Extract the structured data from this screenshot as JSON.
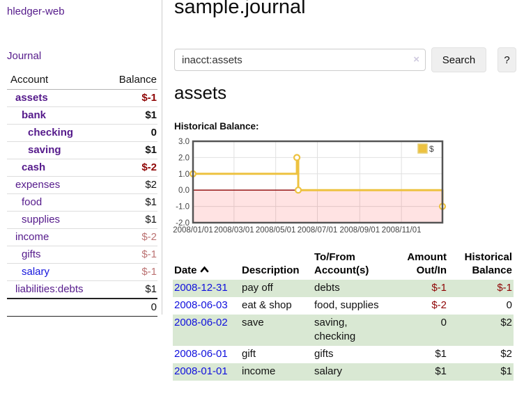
{
  "app": {
    "title": "hledger-web"
  },
  "sidebar": {
    "journal_link": "Journal",
    "account_header": "Account",
    "balance_header": "Balance",
    "accounts": [
      {
        "name": "assets",
        "indent": 0,
        "bold": true,
        "color": "purple",
        "balance": "$-1",
        "balance_class": "neg-strong"
      },
      {
        "name": "bank",
        "indent": 1,
        "bold": true,
        "color": "purple",
        "balance": "$1",
        "balance_class": ""
      },
      {
        "name": "checking",
        "indent": 2,
        "bold": true,
        "color": "purple",
        "balance": "0",
        "balance_class": ""
      },
      {
        "name": "saving",
        "indent": 2,
        "bold": true,
        "color": "purple",
        "balance": "$1",
        "balance_class": ""
      },
      {
        "name": "cash",
        "indent": 1,
        "bold": true,
        "color": "purple",
        "balance": "$-2",
        "balance_class": "neg-strong"
      },
      {
        "name": "expenses",
        "indent": 0,
        "bold": false,
        "color": "purple",
        "balance": "$2",
        "balance_class": ""
      },
      {
        "name": "food",
        "indent": 1,
        "bold": false,
        "color": "purple",
        "balance": "$1",
        "balance_class": ""
      },
      {
        "name": "supplies",
        "indent": 1,
        "bold": false,
        "color": "purple",
        "balance": "$1",
        "balance_class": ""
      },
      {
        "name": "income",
        "indent": 0,
        "bold": false,
        "color": "purple",
        "balance": "$-2",
        "balance_class": "neg-soft"
      },
      {
        "name": "gifts",
        "indent": 1,
        "bold": false,
        "color": "purple",
        "balance": "$-1",
        "balance_class": "neg-soft"
      },
      {
        "name": "salary",
        "indent": 1,
        "bold": false,
        "color": "blue",
        "balance": "$-1",
        "balance_class": "neg-soft"
      },
      {
        "name": "liabilities:debts",
        "indent": 0,
        "bold": false,
        "color": "purple",
        "balance": "$1",
        "balance_class": ""
      }
    ],
    "total": "0"
  },
  "main": {
    "title": "sample.journal",
    "search": {
      "value": "inacct:assets",
      "clear_icon": "×",
      "search_label": "Search",
      "help_label": "?"
    },
    "account_heading": "assets",
    "chart_label": "Historical Balance:"
  },
  "chart_data": {
    "type": "line",
    "step": true,
    "title": "Historical Balance:",
    "series": [
      {
        "name": "$",
        "color": "#edc240",
        "points": [
          [
            "2008/01/01",
            1
          ],
          [
            "2008/06/01",
            2
          ],
          [
            "2008/06/03",
            0
          ],
          [
            "2008/12/31",
            -1
          ]
        ]
      }
    ],
    "xmin": "2008/01/01",
    "xmax": "2008/12/31",
    "x_ticks": [
      "2008/01/01",
      "2008/03/01",
      "2008/05/01",
      "2008/07/01",
      "2008/09/01",
      "2008/11/01"
    ],
    "y_ticks": [
      {
        "v": 3,
        "label": "3.0"
      },
      {
        "v": 2,
        "label": "2.0"
      },
      {
        "v": 1,
        "label": "1.0"
      },
      {
        "v": 0,
        "label": "0.0"
      },
      {
        "v": -1,
        "label": "-1.0"
      },
      {
        "v": -2,
        "label": "-2.0"
      }
    ],
    "ylim": [
      -2,
      3
    ],
    "legend_label": "$",
    "legend_position": "top-right",
    "grid": true,
    "colors": {
      "line": "#edc240",
      "marker_fill": "#ffffff",
      "negative_region": "rgba(255,0,0,0.11)",
      "zero_line": "#8b0000",
      "gridline": "#e0e0e0",
      "border": "#545454",
      "tick_text": "#444444"
    }
  },
  "register": {
    "headers": {
      "date": "Date",
      "description": "Description",
      "tofrom_line1": "To/From",
      "tofrom_line2": "Account(s)",
      "amount_line1": "Amount",
      "amount_line2": "Out/In",
      "balance_line1": "Historical",
      "balance_line2": "Balance"
    },
    "rows": [
      {
        "date": "2008-12-31",
        "description": "pay off",
        "accounts": [
          "debts"
        ],
        "amount": "$-1",
        "amount_negative": true,
        "balance": "$-1",
        "balance_negative": true,
        "shaded": true
      },
      {
        "date": "2008-06-03",
        "description": "eat & shop",
        "accounts": [
          "food, supplies"
        ],
        "amount": "$-2",
        "amount_negative": true,
        "balance": "0",
        "balance_negative": false,
        "shaded": false
      },
      {
        "date": "2008-06-02",
        "description": "save",
        "accounts": [
          "saving,",
          "checking"
        ],
        "amount": "0",
        "amount_negative": false,
        "balance": "$2",
        "balance_negative": false,
        "shaded": true
      },
      {
        "date": "2008-06-01",
        "description": "gift",
        "accounts": [
          "gifts"
        ],
        "amount": "$1",
        "amount_negative": false,
        "balance": "$2",
        "balance_negative": false,
        "shaded": false
      },
      {
        "date": "2008-01-01",
        "description": "income",
        "accounts": [
          "salary"
        ],
        "amount": "$1",
        "amount_negative": false,
        "balance": "$1",
        "balance_negative": false,
        "shaded": true
      }
    ]
  }
}
